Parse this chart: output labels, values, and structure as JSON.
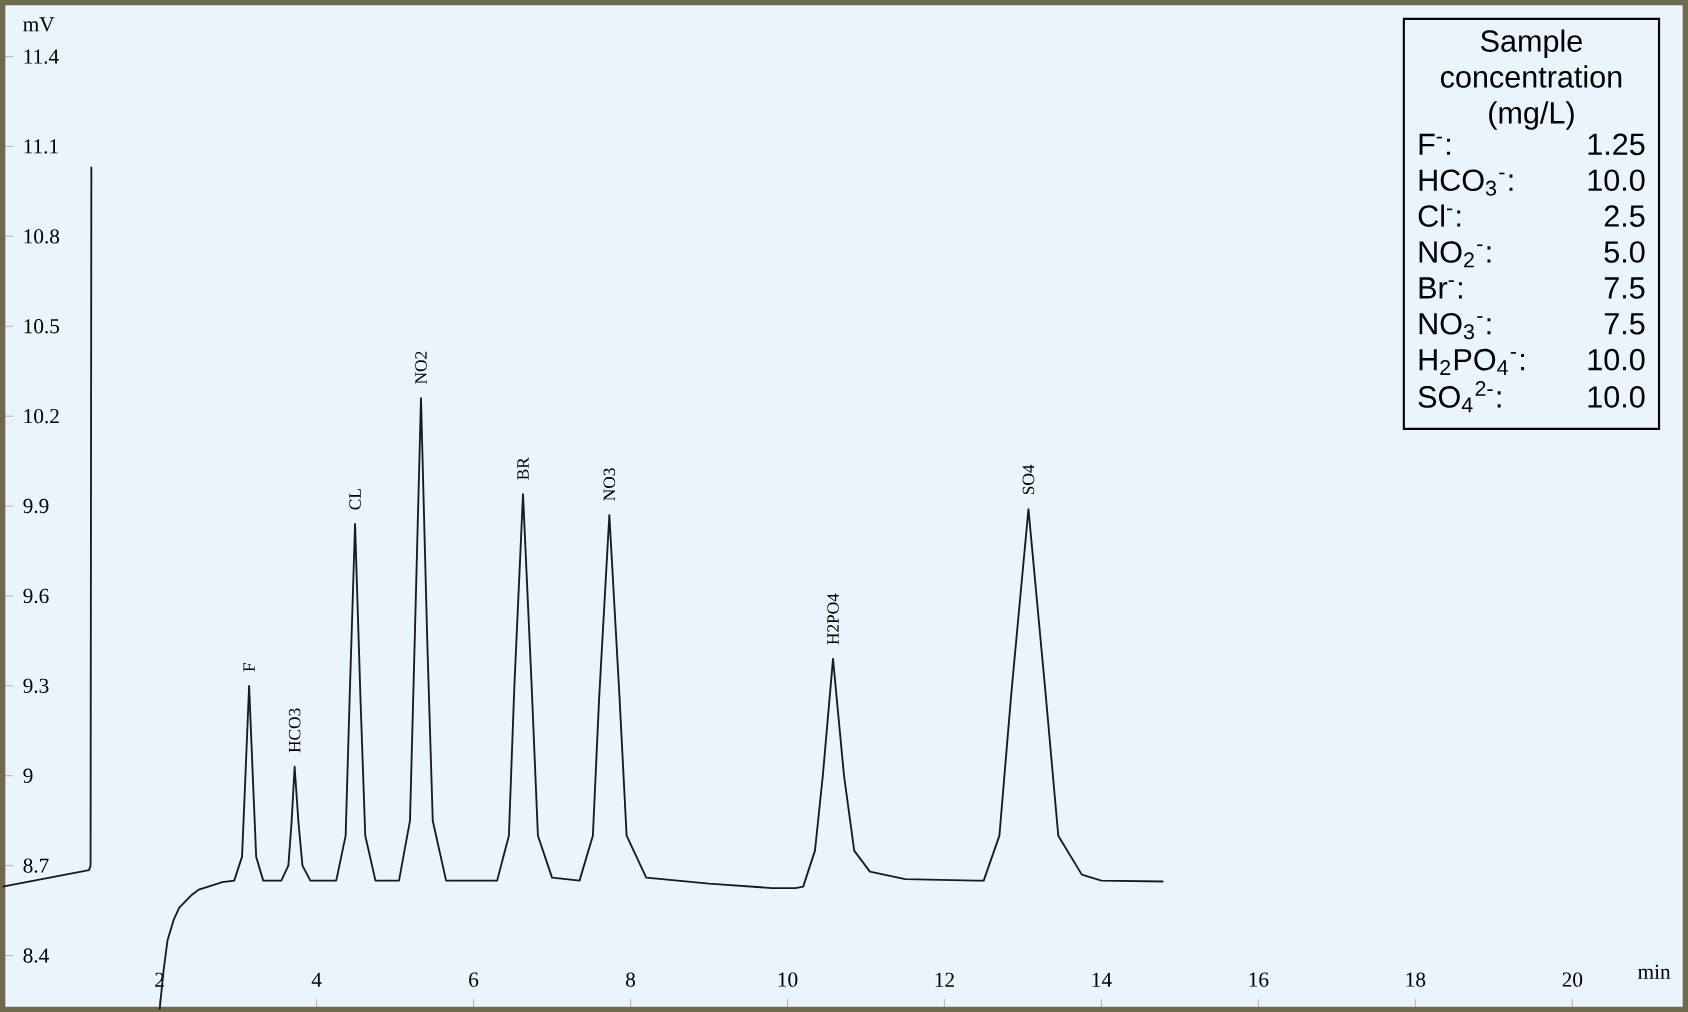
{
  "chart_data": {
    "type": "line",
    "xlabel": "min",
    "ylabel": "mV",
    "xlim": [
      0,
      21.44
    ],
    "ylim": [
      8.22,
      11.58
    ],
    "xticks": [
      2,
      4,
      6,
      8,
      10,
      12,
      14,
      16,
      18,
      20
    ],
    "yticks": [
      8.4,
      8.7,
      9,
      9.3,
      9.6,
      9.9,
      10.2,
      10.5,
      10.8,
      11.1,
      11.4
    ],
    "series": [
      {
        "color": "#1a1a1a",
        "x": [
          0,
          0.3,
          0.6,
          0.9,
          1.1,
          1.12,
          1.13,
          1.5,
          2.0,
          2.05,
          2.1,
          2.18,
          2.25,
          2.4,
          2.5,
          2.8,
          2.95,
          3.05,
          3.09,
          3.14,
          3.19,
          3.23,
          3.32,
          3.55,
          3.64,
          3.68,
          3.72,
          3.77,
          3.82,
          3.92,
          4.25,
          4.37,
          4.42,
          4.49,
          4.56,
          4.62,
          4.75,
          5.05,
          5.19,
          5.25,
          5.33,
          5.41,
          5.48,
          5.65,
          6.3,
          6.45,
          6.52,
          6.63,
          6.74,
          6.82,
          7.0,
          7.35,
          7.52,
          7.6,
          7.73,
          7.86,
          7.95,
          8.2,
          9.0,
          9.8,
          10.1,
          10.2,
          10.35,
          10.45,
          10.58,
          10.72,
          10.85,
          11.05,
          11.5,
          12.4,
          12.5,
          12.7,
          12.85,
          13.07,
          13.29,
          13.45,
          13.75,
          14.0,
          14.78
        ],
        "values": [
          8.63,
          8.645,
          8.66,
          8.675,
          8.685,
          8.7,
          11.03,
          null,
          8.22,
          8.35,
          8.45,
          8.52,
          8.56,
          8.6,
          8.62,
          8.645,
          8.65,
          8.73,
          8.98,
          9.3,
          8.98,
          8.73,
          8.65,
          8.65,
          8.7,
          8.84,
          9.03,
          8.84,
          8.7,
          8.65,
          8.65,
          8.8,
          9.25,
          9.84,
          9.25,
          8.8,
          8.65,
          8.65,
          8.85,
          9.45,
          10.26,
          9.45,
          8.85,
          8.65,
          8.65,
          8.8,
          9.3,
          9.94,
          9.3,
          8.8,
          8.66,
          8.65,
          8.8,
          9.26,
          9.87,
          9.26,
          8.8,
          8.66,
          8.64,
          8.625,
          8.625,
          8.63,
          8.75,
          9.0,
          9.39,
          9.0,
          8.75,
          8.68,
          8.655,
          8.65,
          8.65,
          8.8,
          9.27,
          9.89,
          9.27,
          8.8,
          8.67,
          8.65,
          8.647
        ]
      }
    ],
    "annotations": [
      {
        "text": "F",
        "x": 3.14,
        "y": 9.3
      },
      {
        "text": "HCO3",
        "x": 3.72,
        "y": 9.03
      },
      {
        "text": "CL",
        "x": 4.49,
        "y": 9.84
      },
      {
        "text": "NO2",
        "x": 5.33,
        "y": 10.26
      },
      {
        "text": "BR",
        "x": 6.63,
        "y": 9.94
      },
      {
        "text": "NO3",
        "x": 7.73,
        "y": 9.87
      },
      {
        "text": "H2PO4",
        "x": 10.58,
        "y": 9.39
      },
      {
        "text": "SO4",
        "x": 13.07,
        "y": 9.89
      },
      "Sample concentration (mg/L)",
      "F$^{-}$:",
      "1.25",
      "HCO$_{3}$$^{-}$:",
      "10.0",
      "Cl$^{-}$:",
      "2.5",
      "NO$_{2}$$^{-}$:",
      "5.0",
      "Br$^{-}$:",
      "7.5",
      "NO$_{3}$$^{-}$:",
      "7.5",
      "H$_{2}$PO$_{4}$$^{-}$:",
      "10.0",
      "SO$_{4}$$^{2-}$:",
      "10.0"
    ]
  }
}
